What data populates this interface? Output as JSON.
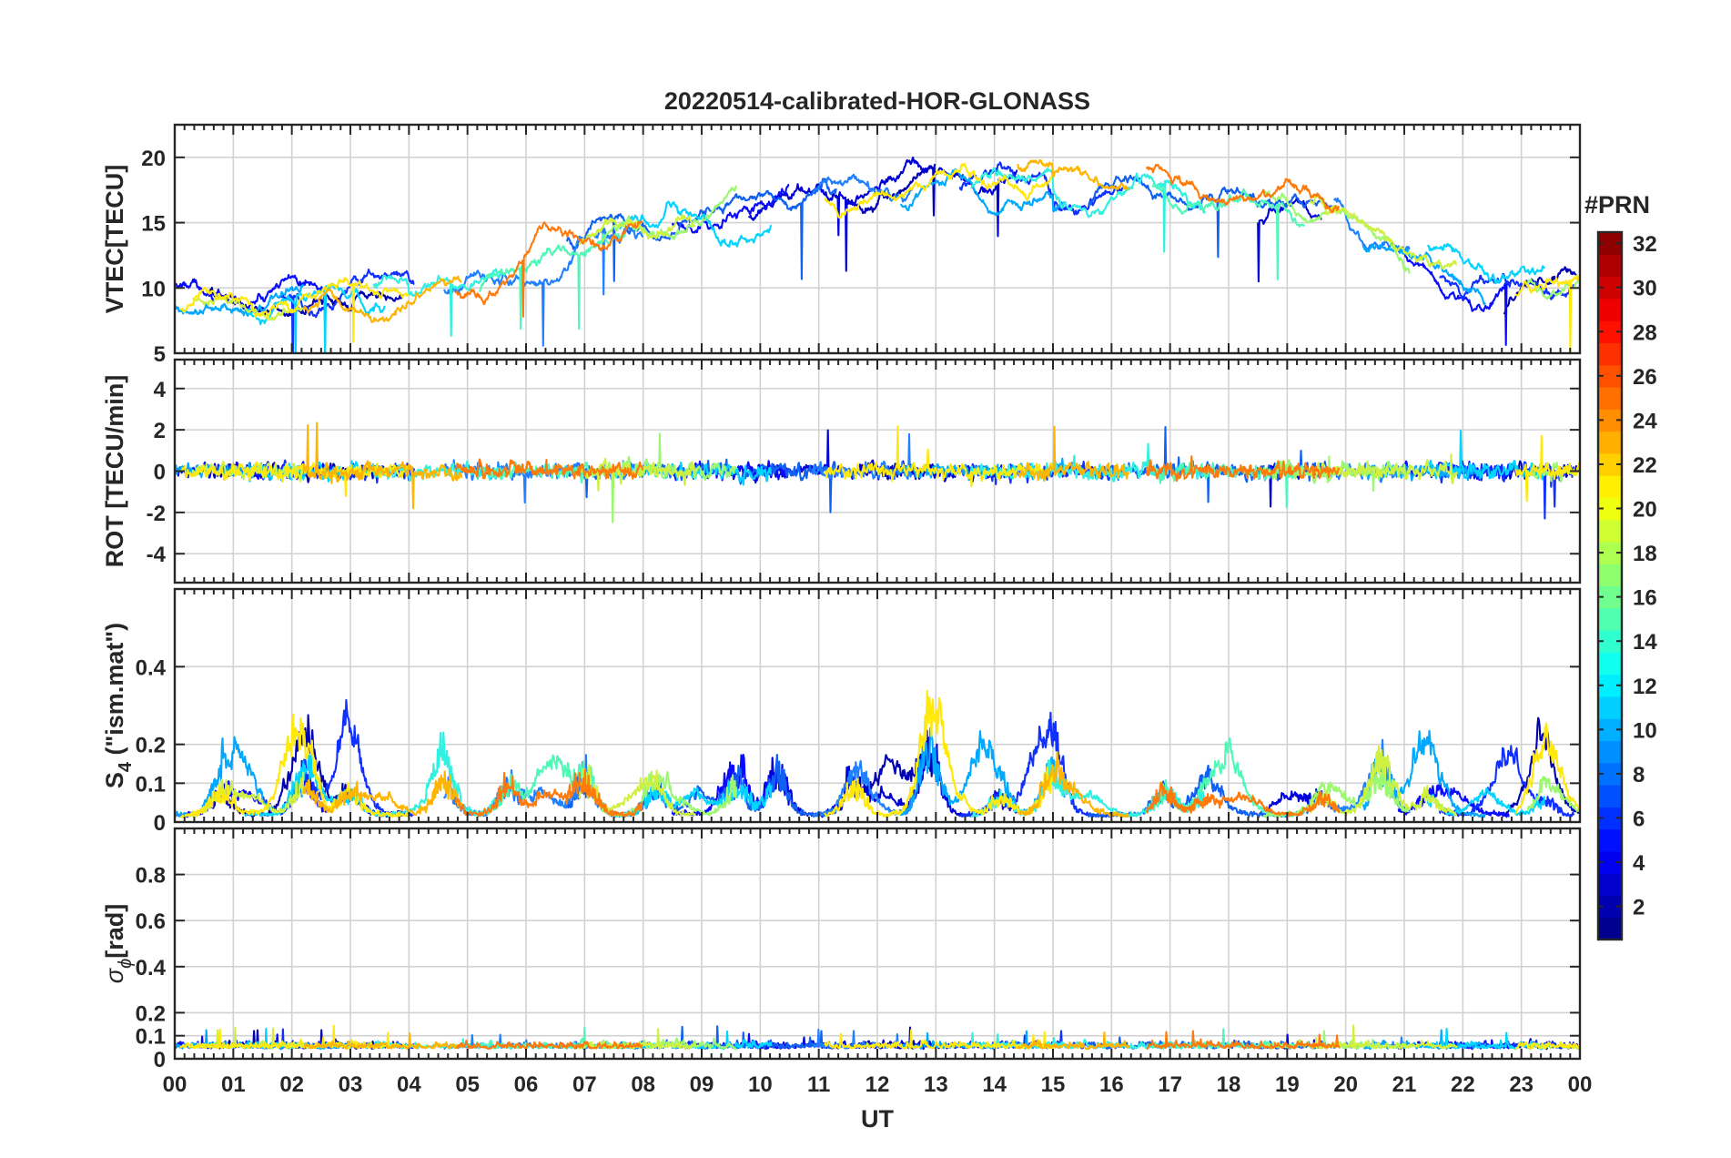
{
  "chart_data": {
    "type": "line",
    "title": "20220514-calibrated-HOR-GLONASS",
    "xlabel": "UT",
    "x_tick_labels": [
      "00",
      "01",
      "02",
      "03",
      "04",
      "05",
      "06",
      "07",
      "08",
      "09",
      "10",
      "11",
      "12",
      "13",
      "14",
      "15",
      "16",
      "17",
      "18",
      "19",
      "20",
      "21",
      "22",
      "23",
      "00"
    ],
    "xlim": [
      0,
      24
    ],
    "grid": true,
    "panels": [
      {
        "id": "vtec",
        "ylabel": "VTEC[TECU]",
        "ylim": [
          5,
          22.5
        ],
        "yticks": [
          5,
          10,
          15,
          20
        ],
        "ytick_labels": [
          "5",
          "10",
          "15",
          "20"
        ]
      },
      {
        "id": "rot",
        "ylabel": "ROT [TECU/min]",
        "ylim": [
          -5.4,
          5.4
        ],
        "yticks": [
          -4,
          -2,
          0,
          2,
          4
        ],
        "ytick_labels": [
          "-4",
          "-2",
          "0",
          "2",
          "4"
        ]
      },
      {
        "id": "s4",
        "ylabel_main": "S",
        "ylabel_sub": "4",
        "ylabel_rest": " (\"ism.mat\")",
        "ylim": [
          0,
          0.6
        ],
        "yticks": [
          0,
          0.1,
          0.2,
          0.4
        ],
        "ytick_labels": [
          "0",
          "0.1",
          "0.2",
          "0.4"
        ]
      },
      {
        "id": "sigphi",
        "ylabel_main": "σ",
        "ylabel_sub": "ϕ",
        "ylabel_rest": "[rad]",
        "ylim": [
          0,
          1.0
        ],
        "yticks": [
          0,
          0.1,
          0.2,
          0.4,
          0.6,
          0.8
        ],
        "ytick_labels": [
          "0",
          "0.1",
          "0.2",
          "0.4",
          "0.6",
          "0.8"
        ]
      }
    ],
    "series": [
      {
        "name": "PRN 1",
        "prn": 1,
        "color": "#0000b0",
        "segments": [
          [
            0.55,
            3.9
          ],
          [
            11.5,
            13.0
          ],
          [
            22.7,
            24.0
          ]
        ]
      },
      {
        "name": "PRN 2",
        "prn": 2,
        "color": "#0000d8",
        "segments": [
          [
            9.8,
            14.4
          ],
          [
            18.5,
            19.6
          ]
        ]
      },
      {
        "name": "PRN 3",
        "prn": 3,
        "color": "#0a0aff",
        "segments": [
          [
            0.0,
            2.6
          ],
          [
            8.5,
            10.5
          ],
          [
            20.9,
            22.8
          ]
        ]
      },
      {
        "name": "PRN 4",
        "prn": 4,
        "color": "#1030ff",
        "segments": [
          [
            1.8,
            4.1
          ],
          [
            13.4,
            16.2
          ],
          [
            21.6,
            23.9
          ]
        ]
      },
      {
        "name": "PRN 5",
        "prn": 5,
        "color": "#1060f2",
        "segments": [
          [
            6.7,
            11.3
          ],
          [
            15.6,
            19.8
          ]
        ]
      },
      {
        "name": "PRN 6",
        "prn": 6,
        "color": "#2080ff",
        "segments": [
          [
            4.6,
            8.0
          ],
          [
            10.9,
            12.6
          ],
          [
            19.8,
            21.1
          ]
        ]
      },
      {
        "name": "PRN 7",
        "prn": 7,
        "color": "#00a8ff",
        "segments": [
          [
            0.0,
            2.2
          ],
          [
            12.4,
            15.2
          ],
          [
            20.3,
            22.4
          ]
        ]
      },
      {
        "name": "PRN 8",
        "prn": 8,
        "color": "#00d4ff",
        "segments": [
          [
            1.2,
            3.6
          ],
          [
            7.6,
            10.2
          ],
          [
            21.4,
            23.4
          ]
        ]
      },
      {
        "name": "PRN 9",
        "prn": 9,
        "color": "#30f0e0",
        "segments": [
          [
            3.4,
            5.6
          ],
          [
            13.6,
            17.6
          ]
        ]
      },
      {
        "name": "PRN 10",
        "prn": 10,
        "color": "#50f8b8",
        "segments": [
          [
            5.2,
            7.7
          ],
          [
            16.7,
            19.3
          ]
        ]
      },
      {
        "name": "PRN 11",
        "prn": 11,
        "color": "#9cf870",
        "segments": [
          [
            7.3,
            9.6
          ],
          [
            18.6,
            21.1
          ],
          [
            23.1,
            24.0
          ]
        ]
      },
      {
        "name": "PRN 12",
        "prn": 12,
        "color": "#d0f040",
        "segments": [
          [
            0.3,
            2.2
          ],
          [
            6.9,
            8.9
          ],
          [
            19.4,
            21.9
          ]
        ]
      },
      {
        "name": "PRN 13",
        "prn": 13,
        "color": "#ffe80a",
        "segments": [
          [
            0.1,
            4.0
          ],
          [
            11.1,
            15.0
          ],
          [
            22.9,
            24.0
          ]
        ]
      },
      {
        "name": "PRN 14",
        "prn": 14,
        "color": "#ffb400",
        "segments": [
          [
            2.2,
            4.9
          ],
          [
            14.4,
            16.3
          ]
        ]
      },
      {
        "name": "PRN 15",
        "prn": 15,
        "color": "#ff7a0a",
        "segments": [
          [
            4.8,
            8.0
          ],
          [
            16.6,
            19.9
          ]
        ]
      }
    ],
    "colorbar": {
      "label": "#PRN",
      "range": [
        1,
        32
      ],
      "ticks": [
        2,
        4,
        6,
        8,
        10,
        12,
        14,
        16,
        18,
        20,
        22,
        24,
        26,
        28,
        30,
        32
      ],
      "tick_labels": [
        "2",
        "4",
        "6",
        "8",
        "10",
        "12",
        "14",
        "16",
        "18",
        "20",
        "22",
        "24",
        "26",
        "28",
        "30",
        "32"
      ],
      "colormap": "jet"
    }
  }
}
